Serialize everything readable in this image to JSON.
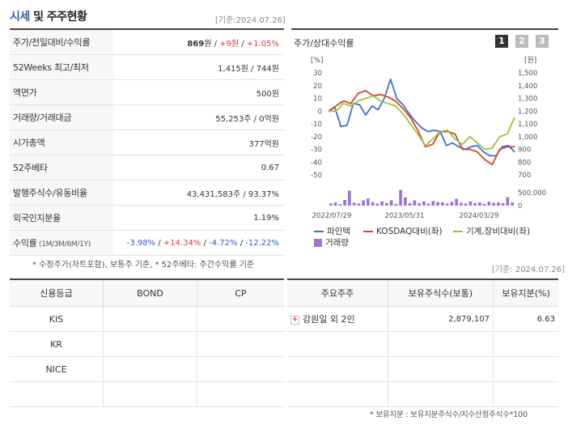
{
  "header": {
    "title_part1": "시세",
    "title_part2": " 및 주주현황",
    "date": "[기준:2024.07.26]"
  },
  "quote_table": {
    "rows": [
      {
        "label": "주가/전일대비/수익률",
        "value": {
          "price": "869",
          "unit": "원",
          "sep1": " / ",
          "change": "+9원",
          "sep2": " / ",
          "pct": "+1.05%"
        }
      },
      {
        "label": "52Weeks 최고/최저",
        "value": "1,415원 / 744원"
      },
      {
        "label": "액면가",
        "value": "500원"
      },
      {
        "label": "거래량/거래대금",
        "value": "55,253주 / 0억원"
      },
      {
        "label": "시가총액",
        "value": "377억원"
      },
      {
        "label": "52주베타",
        "value": "0.67"
      },
      {
        "label": "발행주식수/유동비율",
        "value": "43,431,583주 / 93.37%"
      },
      {
        "label": "외국인지분율",
        "value": "1.19%"
      },
      {
        "label": "수익률",
        "label_small": " (1M/3M/6M/1Y)",
        "returns": [
          "-3.98%",
          "+14.34%",
          "-4.72%",
          "-12.22%"
        ]
      }
    ],
    "note": "* 수정주가(차트포함), 보통주 기준, * 52주베타: 주간수익률 기준"
  },
  "chart_panel": {
    "title": "주가/상대수익률",
    "period_buttons": [
      "1",
      "2",
      "3"
    ],
    "colors": {
      "stock": "#3a6fd8",
      "kosdaq": "#d9412b",
      "sector": "#9ac43a",
      "volume": "#a074d3",
      "active_btn": "#333333",
      "inactive_btn": "#bbbbbb"
    },
    "legend": {
      "stock": "파인텍",
      "kosdaq": "KOSDAQ대비(좌)",
      "sector": "기계,장비대비(좌)",
      "volume": "거래량"
    }
  },
  "chart_data": {
    "type": "line",
    "left_axis": {
      "label": "[%]",
      "ticks": [
        30,
        20,
        10,
        0,
        -10,
        -20,
        -30,
        -40,
        -50
      ],
      "ylim": [
        -50,
        30
      ]
    },
    "right_axis": {
      "label": "[원]",
      "ticks": [
        "1,500",
        "1,400",
        "1,300",
        "1,200",
        "1,100",
        "1,000",
        "900",
        "800",
        "700"
      ],
      "ylim": [
        700,
        1500
      ]
    },
    "volume_axis": {
      "ticks": [
        "500,000",
        "0"
      ],
      "ylim": [
        0,
        500000
      ]
    },
    "x_ticks": [
      "2022/07/29",
      "2023/05/31",
      "2024/03/29"
    ],
    "series": [
      {
        "name": "파인텍",
        "axis": "right",
        "values": [
          1200,
          1230,
          1080,
          1090,
          1260,
          1250,
          1170,
          1240,
          1210,
          1300,
          1450,
          1300,
          1250,
          1180,
          1120,
          1070,
          1040,
          1050,
          1040,
          930,
          950,
          920,
          900,
          920,
          930,
          880,
          850,
          850,
          920,
          930,
          880
        ]
      },
      {
        "name": "KOSDAQ대비(좌)",
        "axis": "left",
        "values": [
          0,
          4,
          8,
          6,
          14,
          16,
          12,
          13,
          11,
          8,
          2,
          -5,
          -15,
          -28,
          -26,
          -16,
          -16,
          -18,
          -30,
          -30,
          -32,
          -38,
          -42,
          -30,
          -28,
          -28
        ]
      },
      {
        "name": "기계,장비대비(좌)",
        "axis": "left",
        "values": [
          0,
          0,
          6,
          4,
          8,
          10,
          12,
          8,
          6,
          4,
          -2,
          -10,
          -18,
          -27,
          -22,
          -16,
          -15,
          -22,
          -26,
          -20,
          -25,
          -30,
          -29,
          -20,
          -18,
          -5
        ]
      },
      {
        "name": "거래량",
        "axis": "volume",
        "type": "bar",
        "values": [
          60000,
          90000,
          40000,
          160000,
          420000,
          80000,
          60000,
          150000,
          200000,
          100000,
          60000,
          120000,
          70000,
          150000,
          50000,
          440000,
          230000,
          70000,
          150000,
          70000,
          120000,
          60000,
          130000,
          100000,
          90000,
          60000,
          110000,
          190000,
          80000,
          60000,
          120000,
          70000,
          90000,
          50000,
          110000,
          80000,
          90000,
          70000,
          240000,
          90000
        ]
      }
    ]
  },
  "credit_table": {
    "headers": [
      "신용등급",
      "BOND",
      "CP"
    ],
    "rows": [
      [
        "KIS",
        "",
        ""
      ],
      [
        "KR",
        "",
        ""
      ],
      [
        "NICE",
        "",
        ""
      ],
      [
        "",
        "",
        ""
      ]
    ]
  },
  "holders_date": "[기준: 2024.07.26]",
  "holders_table": {
    "headers": [
      "주요주주",
      "보유주식수(보통)",
      "보유지분(%)"
    ],
    "rows": [
      {
        "name": "강원일 외 2인",
        "shares": "2,879,107",
        "pct": "6.63"
      },
      {
        "name": "",
        "shares": "",
        "pct": ""
      },
      {
        "name": "",
        "shares": "",
        "pct": ""
      },
      {
        "name": "",
        "shares": "",
        "pct": ""
      }
    ],
    "note": "* 보유지분 : 보유지분주식수/지수산정주식수*100"
  }
}
